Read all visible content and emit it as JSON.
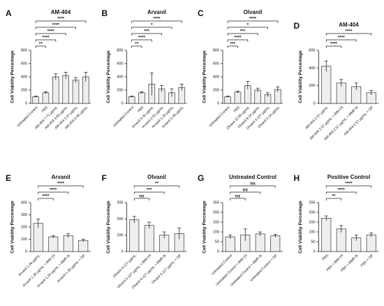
{
  "chart_data": [
    {
      "type": "bar",
      "panel": "A",
      "title": "AM-404",
      "y_label": "Cell Viability Percentage",
      "color": "#eeeeee",
      "categories": [
        "Untreated Control",
        "FBS",
        "AM-404 7.71 µg/mL",
        "AM-404 3.85 µg/mL",
        "AM-404 2.57 µg/mL",
        "AM-404 0.95 µg/mL"
      ],
      "values": [
        100,
        160,
        400,
        420,
        350,
        400
      ],
      "errors": [
        10,
        15,
        45,
        50,
        40,
        70
      ],
      "significance": [
        null,
        "**",
        "****",
        "****",
        "****",
        "****"
      ],
      "ylim": [
        0,
        800
      ],
      "yticks": [
        0,
        200,
        400,
        600,
        800
      ]
    },
    {
      "type": "bar",
      "panel": "B",
      "title": "Arvanil",
      "y_label": "Cell Viability Percentage",
      "color": "#eeeeee",
      "categories": [
        "Untreated Control",
        "FBS",
        "Arvanil 5.02 µg/mL",
        "Arvanil 2.51 µg/mL",
        "Arvanil 1.26 µg/mL",
        "Arvanil 0.08 µg/mL"
      ],
      "values": [
        100,
        160,
        290,
        220,
        160,
        240
      ],
      "errors": [
        10,
        15,
        170,
        50,
        60,
        50
      ],
      "significance": [
        null,
        "**",
        "****",
        "***",
        "*",
        "****"
      ],
      "ylim": [
        0,
        800
      ],
      "yticks": [
        0,
        200,
        400,
        600,
        800
      ]
    },
    {
      "type": "bar",
      "panel": "C",
      "title": "Olvanil",
      "y_label": "Cell Viability Percentage",
      "color": "#eeeeee",
      "categories": [
        "Untreated Control",
        "FBS",
        "Olvanil 12.65 µg/mL",
        "Olvanil 8.24 µg/mL",
        "Olvanil 4.127 µg/mL",
        "Olvanil 0.14 µg/mL"
      ],
      "values": [
        100,
        170,
        270,
        200,
        130,
        210
      ],
      "errors": [
        10,
        15,
        60,
        30,
        30,
        40
      ],
      "significance": [
        null,
        "***",
        "****",
        "***",
        "*",
        "****"
      ],
      "ylim": [
        0,
        800
      ],
      "yticks": [
        0,
        200,
        400,
        600,
        800
      ]
    },
    {
      "type": "bar",
      "panel": "D",
      "title": "AM-404",
      "y_label": "Cell Viability Percentage",
      "color": "#eeeeee",
      "categories": [
        "AM-404 2.57 µg/mL",
        "AM-404 2.57 µg/mL + BIM-23",
        "AM-404 2.57 µg/mL + MMP-9i",
        "AM-404 2.57 µg/mL + OP"
      ],
      "values": [
        420,
        230,
        190,
        120
      ],
      "errors": [
        60,
        40,
        40,
        25
      ],
      "significance": [
        null,
        "****",
        "****",
        "****"
      ],
      "ylim": [
        0,
        600
      ],
      "yticks": [
        0,
        200,
        400,
        600
      ]
    },
    {
      "type": "bar",
      "panel": "E",
      "title": "Arvanil",
      "y_label": "Cell Viability Percentage",
      "color": "#eeeeee",
      "categories": [
        "Arvanil 1.26 µg/mL",
        "Arvanil 1.26 µg/mL + BIM-23",
        "Arvanil 1.26 µg/mL + MMP-9i",
        "Arvanil 1.26 µg/mL + OP"
      ],
      "values": [
        230,
        120,
        130,
        90
      ],
      "errors": [
        35,
        10,
        15,
        10
      ],
      "significance": [
        null,
        "****",
        "****",
        "****"
      ],
      "ylim": [
        0,
        400
      ],
      "yticks": [
        0,
        100,
        200,
        300,
        400
      ]
    },
    {
      "type": "bar",
      "panel": "F",
      "title": "Olvanil",
      "y_label": "Cell Viability Percentage",
      "color": "#eeeeee",
      "categories": [
        "Olvanil 4.127 µg/mL",
        "Olvanil 4.127 µg/mL + BIM-23",
        "Olvanil 4.127 µg/mL + MMP-9i",
        "Olvanil 4.127 µg/mL + OP"
      ],
      "values": [
        195,
        160,
        100,
        110
      ],
      "errors": [
        20,
        20,
        20,
        35
      ],
      "significance": [
        null,
        "ns",
        "***",
        "**"
      ],
      "ylim": [
        0,
        300
      ],
      "yticks": [
        0,
        100,
        200,
        300
      ]
    },
    {
      "type": "bar",
      "panel": "G",
      "title": "Untreated Control",
      "y_label": "Cell Viability Percentage",
      "color": "#eeeeee",
      "categories": [
        "Untreated Control",
        "Untreated Control + BIM-23",
        "Untreated Control + MMP-9i",
        "Untreated Control + OP"
      ],
      "values": [
        75,
        85,
        90,
        80
      ],
      "errors": [
        10,
        30,
        10,
        8
      ],
      "significance": [
        null,
        "ns",
        "ns",
        "ns"
      ],
      "ylim": [
        0,
        250
      ],
      "yticks": [
        0,
        50,
        100,
        150,
        200,
        250
      ]
    },
    {
      "type": "bar",
      "panel": "H",
      "title": "Positive Control",
      "y_label": "Cell Viability Percentage",
      "color": "#eeeeee",
      "categories": [
        "FBS",
        "FBS + BIM-23",
        "FBS + MMP-9i",
        "FBS + OP"
      ],
      "values": [
        170,
        115,
        70,
        85
      ],
      "errors": [
        12,
        18,
        15,
        10
      ],
      "significance": [
        null,
        "**",
        "****",
        "****"
      ],
      "ylim": [
        0,
        250
      ],
      "yticks": [
        0,
        50,
        100,
        150,
        200,
        250
      ]
    }
  ]
}
